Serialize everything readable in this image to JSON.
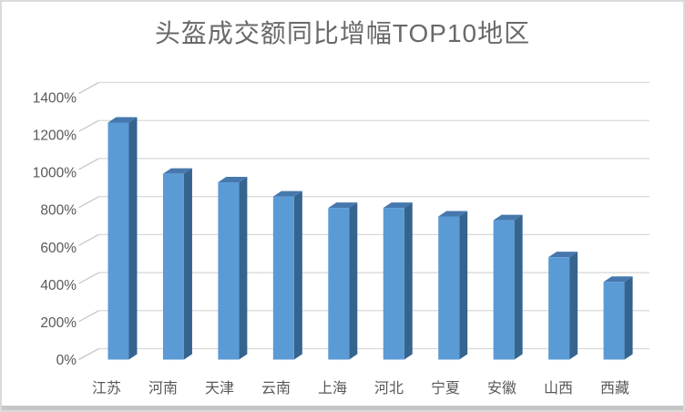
{
  "window": {
    "background": "#ffffff",
    "border_color": "#dbdbdb",
    "bottom_strip_color": "#c6c6c6"
  },
  "chart_data": {
    "type": "bar",
    "variant": "3d-clustered-column",
    "title": "头盔成交额同比增幅TOP10地区",
    "xlabel": "",
    "ylabel": "",
    "unit": "%",
    "categories": [
      "江苏",
      "河南",
      "天津",
      "云南",
      "上海",
      "河北",
      "宁夏",
      "安徽",
      "山西",
      "西藏"
    ],
    "values": [
      1250,
      980,
      935,
      860,
      800,
      800,
      755,
      735,
      540,
      410
    ],
    "ylim": [
      0,
      1400
    ],
    "y_tick_step": 200,
    "y_tick_labels": [
      "0%",
      "200%",
      "400%",
      "600%",
      "800%",
      "1000%",
      "1200%",
      "1400%"
    ],
    "grid": true,
    "legend": "none",
    "colors": {
      "bar_front": "#5b9bd5",
      "bar_top": "#4678ae",
      "bar_side": "#35648f",
      "gridline": "#d9d9d9",
      "tick": "#c8c8c8",
      "axis_label": "#595959",
      "title": "#696969"
    }
  }
}
